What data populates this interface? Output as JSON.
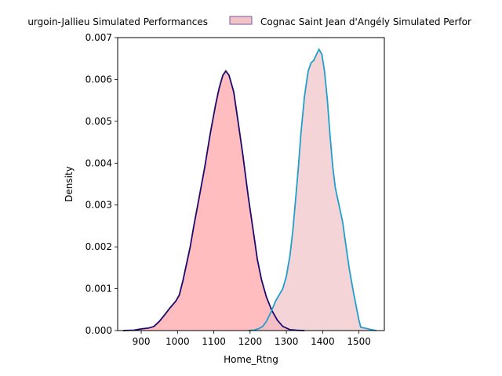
{
  "chart_data": {
    "type": "area",
    "xlabel": "Home_Rtng",
    "ylabel": "Density",
    "xlim": [
      835,
      1570
    ],
    "ylim": [
      0,
      0.007
    ],
    "x_ticks": [
      900,
      1000,
      1100,
      1200,
      1300,
      1400,
      1500
    ],
    "x_tick_labels": [
      "900",
      "1000",
      "1100",
      "1200",
      "1300",
      "1400",
      "1500"
    ],
    "y_ticks": [
      0,
      0.001,
      0.002,
      0.003,
      0.004,
      0.005,
      0.006,
      0.007
    ],
    "y_tick_labels": [
      "0.000",
      "0.001",
      "0.002",
      "0.003",
      "0.004",
      "0.005",
      "0.006",
      "0.007"
    ],
    "legend_placement": "top-center, outside the axes",
    "series": [
      {
        "name": "Bourgoin-Jallieu Simulated Performances",
        "legend_label": "urgoin-Jallieu Simulated Performances",
        "line_color": "#1a0a6e",
        "fill_color": "#ff9a9e",
        "points": [
          [
            850,
            0
          ],
          [
            880,
            1e-05
          ],
          [
            900,
            4e-05
          ],
          [
            920,
            6e-05
          ],
          [
            935,
            0.0001
          ],
          [
            950,
            0.00022
          ],
          [
            965,
            0.00038
          ],
          [
            980,
            0.00055
          ],
          [
            995,
            0.0007
          ],
          [
            1005,
            0.00085
          ],
          [
            1015,
            0.0012
          ],
          [
            1025,
            0.0016
          ],
          [
            1035,
            0.002
          ],
          [
            1045,
            0.0025
          ],
          [
            1060,
            0.0032
          ],
          [
            1075,
            0.0039
          ],
          [
            1090,
            0.0047
          ],
          [
            1105,
            0.0054
          ],
          [
            1115,
            0.0058
          ],
          [
            1125,
            0.0061
          ],
          [
            1133,
            0.0062
          ],
          [
            1142,
            0.0061
          ],
          [
            1155,
            0.0057
          ],
          [
            1165,
            0.0051
          ],
          [
            1180,
            0.0042
          ],
          [
            1195,
            0.0032
          ],
          [
            1210,
            0.0023
          ],
          [
            1220,
            0.0017
          ],
          [
            1232,
            0.0012
          ],
          [
            1245,
            0.0008
          ],
          [
            1260,
            0.00048
          ],
          [
            1275,
            0.00025
          ],
          [
            1290,
            0.0001
          ],
          [
            1310,
            2e-05
          ],
          [
            1330,
            5e-06
          ],
          [
            1350,
            0
          ]
        ]
      },
      {
        "name": "Cognac Saint Jean d'Angély Simulated Performances",
        "legend_label": "Cognac Saint Jean d'Angély Simulated Perfor",
        "line_color": "#1f9fce",
        "fill_color": "#f1c2c8",
        "points": [
          [
            1195,
            0
          ],
          [
            1210,
            1e-05
          ],
          [
            1225,
            5e-05
          ],
          [
            1235,
            0.0001
          ],
          [
            1245,
            0.00022
          ],
          [
            1258,
            0.00045
          ],
          [
            1270,
            0.0007
          ],
          [
            1280,
            0.00085
          ],
          [
            1290,
            0.001
          ],
          [
            1300,
            0.0013
          ],
          [
            1310,
            0.0018
          ],
          [
            1318,
            0.0024
          ],
          [
            1325,
            0.0031
          ],
          [
            1333,
            0.0039
          ],
          [
            1340,
            0.0047
          ],
          [
            1350,
            0.0056
          ],
          [
            1360,
            0.0062
          ],
          [
            1368,
            0.0064
          ],
          [
            1375,
            0.00645
          ],
          [
            1383,
            0.0066
          ],
          [
            1390,
            0.00672
          ],
          [
            1398,
            0.0066
          ],
          [
            1405,
            0.0062
          ],
          [
            1413,
            0.0055
          ],
          [
            1420,
            0.0047
          ],
          [
            1428,
            0.0039
          ],
          [
            1435,
            0.0034
          ],
          [
            1445,
            0.003
          ],
          [
            1455,
            0.0026
          ],
          [
            1463,
            0.0021
          ],
          [
            1473,
            0.0015
          ],
          [
            1483,
            0.001
          ],
          [
            1493,
            0.00055
          ],
          [
            1500,
            0.00025
          ],
          [
            1505,
            8e-05
          ],
          [
            1515,
            6e-05
          ],
          [
            1530,
            3e-05
          ],
          [
            1548,
            0
          ]
        ]
      }
    ]
  }
}
